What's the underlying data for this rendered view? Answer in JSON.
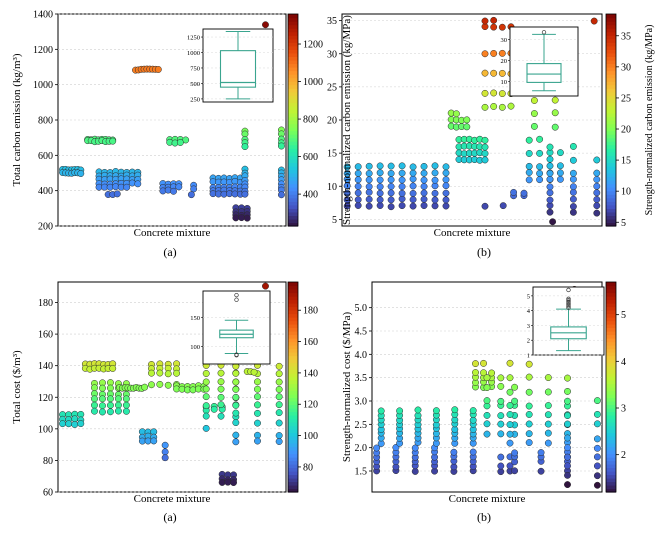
{
  "figure": {
    "colormap": [
      "#30123b",
      "#4454c4",
      "#4490fe",
      "#1fc8de",
      "#29efa2",
      "#7dff56",
      "#c1f334",
      "#f1ca3a",
      "#fe922a",
      "#ea4f0d",
      "#be2102",
      "#7a0403"
    ]
  },
  "chart_data": [
    {
      "id": "top-left",
      "type": "scatter",
      "caption": "(a)",
      "xlabel": "Concrete mixture",
      "ylabel": "Total carbon emission (kg/m³)",
      "ylim": [
        200,
        1400
      ],
      "yticks": [
        200,
        400,
        600,
        800,
        1000,
        1200,
        1400
      ],
      "grid": true,
      "colorbar": {
        "label": "",
        "range": [
          230,
          1360
        ],
        "ticks": [
          400,
          600,
          800,
          1000,
          1200
        ]
      },
      "inset": {
        "type": "box",
        "ylim": [
          200,
          1380
        ],
        "yticks": [
          250,
          500,
          750,
          1000,
          1250
        ],
        "whisker_low": 250,
        "q1": 440,
        "median": 515,
        "q3": 1030,
        "whisker_high": 1340,
        "outliers": []
      },
      "clusters": [
        {
          "x_range": [
            0.02,
            0.1
          ],
          "y": [
            520,
            500
          ],
          "n": 14
        },
        {
          "x_range": [
            0.13,
            0.24
          ],
          "y": [
            690,
            680
          ],
          "n": 16
        },
        {
          "x_range": [
            0.18,
            0.35
          ],
          "y": [
            505,
            485,
            465,
            440,
            420
          ],
          "n": 38
        },
        {
          "x_range": [
            0.22,
            0.26
          ],
          "y": [
            380
          ],
          "n": 3
        },
        {
          "x_range": [
            0.34,
            0.44
          ],
          "y": [
            1085
          ],
          "n": 9
        },
        {
          "x_range": [
            0.46,
            0.53
          ],
          "y": [
            440,
            420,
            400
          ],
          "n": 11
        },
        {
          "x_range": [
            0.49,
            0.56
          ],
          "y": [
            690,
            670
          ],
          "n": 7
        },
        {
          "x_range": [
            0.58,
            0.61
          ],
          "y": [
            430,
            410
          ],
          "n": 2
        },
        {
          "x_range": [
            0.57,
            0.6
          ],
          "y": [
            380
          ],
          "n": 1
        },
        {
          "x_range": [
            0.66,
            0.85
          ],
          "y": [
            1215,
            1200,
            1185,
            1160
          ],
          "n": 34
        },
        {
          "x_range": [
            0.84,
            0.92
          ],
          "y": [
            1200
          ],
          "n": 4
        },
        {
          "x_range": [
            0.68,
            0.8
          ],
          "y": [
            470,
            450,
            420,
            400,
            380
          ],
          "n": 30
        },
        {
          "x_range": [
            0.78,
            0.83
          ],
          "y": [
            300,
            280,
            260,
            245
          ],
          "n": 12
        },
        {
          "x_range": [
            0.82,
            0.98
          ],
          "y": [
            740,
            720,
            690,
            670,
            650,
            520,
            500,
            480,
            460,
            440,
            420,
            400,
            380
          ],
          "n": 26
        },
        {
          "x_range": [
            0.9,
            0.92
          ],
          "y": [
            1340
          ],
          "n": 1
        }
      ]
    },
    {
      "id": "top-right",
      "type": "scatter",
      "caption": "(b)",
      "xlabel": "Concrete mixture",
      "ylabel": "Strength-normalized carbon emission (kg/MPa)",
      "ylim": [
        4,
        36
      ],
      "yticks": [
        5,
        10,
        15,
        20,
        25,
        30,
        35
      ],
      "grid": true,
      "colorbar": {
        "label": "Strength-normalized carbon emission (kg/MPa)",
        "range": [
          4.4,
          38.5
        ],
        "ticks": [
          5,
          10,
          15,
          20,
          25,
          30,
          35
        ]
      },
      "inset": {
        "type": "box",
        "ylim": [
          3,
          36
        ],
        "yticks": [
          10,
          20,
          30
        ],
        "whisker_low": 5.5,
        "q1": 9.5,
        "median": 13.5,
        "q3": 18.5,
        "whisker_high": 32.5,
        "outliers": [
          33.5
        ]
      },
      "clusters": [
        {
          "x_range": [
            0.02,
            0.4
          ],
          "y": [
            7,
            8,
            9,
            10,
            11,
            12,
            13
          ],
          "n": 70
        },
        {
          "x_range": [
            0.42,
            0.48
          ],
          "y": [
            19,
            20,
            21
          ],
          "n": 10
        },
        {
          "x_range": [
            0.45,
            0.55
          ],
          "y": [
            14,
            15,
            16,
            17
          ],
          "n": 24
        },
        {
          "x_range": [
            0.55,
            0.62
          ],
          "y": [
            7
          ],
          "n": 2
        },
        {
          "x_range": [
            0.55,
            0.65
          ],
          "y": [
            22,
            24,
            27,
            30,
            34,
            35
          ],
          "n": 22
        },
        {
          "x_range": [
            0.66,
            0.7
          ],
          "y": [
            8.5,
            9
          ],
          "n": 4
        },
        {
          "x_range": [
            0.72,
            0.84
          ],
          "y": [
            11,
            12,
            13,
            15,
            17
          ],
          "n": 18
        },
        {
          "x_range": [
            0.74,
            0.82
          ],
          "y": [
            19,
            21,
            23,
            25
          ],
          "n": 8
        },
        {
          "x_range": [
            0.8,
            0.98
          ],
          "y": [
            6,
            7,
            8,
            9,
            10,
            11,
            12,
            14,
            16,
            19,
            21
          ],
          "n": 26
        },
        {
          "x_range": [
            0.8,
            0.82
          ],
          "y": [
            4.6
          ],
          "n": 1
        },
        {
          "x_range": [
            0.96,
            0.98
          ],
          "y": [
            35
          ],
          "n": 1
        }
      ]
    },
    {
      "id": "bottom-left",
      "type": "scatter",
      "caption": "(a)",
      "xlabel": "Concrete mixture",
      "ylabel": "Total cost ($/m³)",
      "ylim": [
        60,
        193
      ],
      "yticks": [
        60,
        80,
        100,
        120,
        140,
        160,
        180
      ],
      "grid": true,
      "colorbar": {
        "label": "",
        "range": [
          64,
          198
        ],
        "ticks": [
          80,
          100,
          120,
          140,
          160,
          180
        ]
      },
      "inset": {
        "type": "box",
        "ylim": [
          70,
          195
        ],
        "yticks": [
          100,
          150
        ],
        "whisker_low": 88,
        "q1": 115,
        "median": 121,
        "q3": 128,
        "whisker_high": 145,
        "outliers": [
          86,
          85,
          180,
          188
        ]
      },
      "clusters": [
        {
          "x_range": [
            0.02,
            0.1
          ],
          "y": [
            109,
            106,
            103
          ],
          "n": 12
        },
        {
          "x_range": [
            0.12,
            0.24
          ],
          "y": [
            141,
            138
          ],
          "n": 14
        },
        {
          "x_range": [
            0.16,
            0.3
          ],
          "y": [
            129,
            126,
            122,
            119,
            115,
            111
          ],
          "n": 30
        },
        {
          "x_range": [
            0.27,
            0.38
          ],
          "y": [
            126
          ],
          "n": 10
        },
        {
          "x_range": [
            0.37,
            0.42
          ],
          "y": [
            98,
            95,
            92
          ],
          "n": 9
        },
        {
          "x_range": [
            0.41,
            0.52
          ],
          "y": [
            141,
            138,
            135,
            128,
            125
          ],
          "n": 16
        },
        {
          "x_range": [
            0.46,
            0.48
          ],
          "y": [
            90,
            85,
            82
          ],
          "n": 3
        },
        {
          "x_range": [
            0.52,
            0.64
          ],
          "y": [
            127,
            125
          ],
          "n": 12
        },
        {
          "x_range": [
            0.65,
            0.72
          ],
          "y": [
            114,
            112
          ],
          "n": 6
        },
        {
          "x_range": [
            0.65,
            0.78
          ],
          "y": [
            140,
            135,
            130,
            125,
            120,
            115,
            108,
            100,
            93
          ],
          "n": 22
        },
        {
          "x_range": [
            0.72,
            0.77
          ],
          "y": [
            71,
            68,
            66
          ],
          "n": 9
        },
        {
          "x_range": [
            0.78,
            0.97
          ],
          "y": [
            140,
            135,
            130,
            125,
            120,
            115,
            110,
            104,
            96,
            92,
            87,
            81
          ],
          "n": 30
        },
        {
          "x_range": [
            0.83,
            0.86
          ],
          "y": [
            136
          ],
          "n": 3
        },
        {
          "x_range": [
            0.9,
            0.92
          ],
          "y": [
            190
          ],
          "n": 1
        }
      ]
    },
    {
      "id": "bottom-right",
      "type": "scatter",
      "caption": "(b)",
      "xlabel": "Concrete mixture",
      "ylabel": "Strength-normalized cost ($/MPa)",
      "ylim": [
        1.05,
        5.55
      ],
      "yticks": [
        1.5,
        2.0,
        2.5,
        3.0,
        3.5,
        4.0,
        4.5,
        5.0
      ],
      "grid": true,
      "colorbar": {
        "label": "",
        "range": [
          1.2,
          5.7
        ],
        "ticks": [
          2,
          3,
          4,
          5
        ]
      },
      "inset": {
        "type": "box",
        "ylim": [
          1,
          5.6
        ],
        "yticks": [
          1,
          2,
          3,
          4,
          5
        ],
        "whisker_low": 1.3,
        "q1": 2.1,
        "median": 2.5,
        "q3": 2.9,
        "whisker_high": 4.1,
        "outliers": [
          4.2,
          4.3,
          4.4,
          4.5,
          4.6,
          4.7,
          4.8,
          5.4
        ]
      },
      "clusters": [
        {
          "x_range": [
            0.02,
            0.44
          ],
          "y": [
            1.5,
            1.6,
            1.7,
            1.8,
            1.9,
            2.0
          ],
          "n": 34
        },
        {
          "x_range": [
            0.04,
            0.44
          ],
          "y": [
            2.1,
            2.2,
            2.3,
            2.4,
            2.5,
            2.6,
            2.7,
            2.8,
            2.9
          ],
          "n": 48
        },
        {
          "x_range": [
            0.45,
            0.52
          ],
          "y": [
            3.3,
            3.4,
            3.5,
            3.6,
            3.8
          ],
          "n": 14
        },
        {
          "x_range": [
            0.5,
            0.62
          ],
          "y": [
            2.3,
            2.5,
            2.7,
            2.9,
            3.0,
            3.3,
            3.5,
            3.7,
            3.8
          ],
          "n": 20
        },
        {
          "x_range": [
            0.56,
            0.6
          ],
          "y": [
            1.5,
            1.6,
            1.8,
            1.9,
            2.0
          ],
          "n": 6
        },
        {
          "x_range": [
            0.6,
            0.85
          ],
          "y": [
            2.1,
            2.3,
            2.5,
            2.7,
            2.9,
            3.2,
            3.5,
            3.8
          ],
          "n": 30
        },
        {
          "x_range": [
            0.62,
            0.85
          ],
          "y": [
            1.5,
            1.7,
            1.8,
            1.9,
            2.0
          ],
          "n": 12
        },
        {
          "x_range": [
            0.85,
            0.98
          ],
          "y": [
            1.2,
            1.4,
            1.6,
            1.8,
            2.0,
            2.2,
            2.5,
            2.7,
            3.0
          ],
          "n": 18
        },
        {
          "x_range": [
            0.86,
            0.9
          ],
          "y": [
            5.4
          ],
          "n": 1
        }
      ]
    }
  ]
}
